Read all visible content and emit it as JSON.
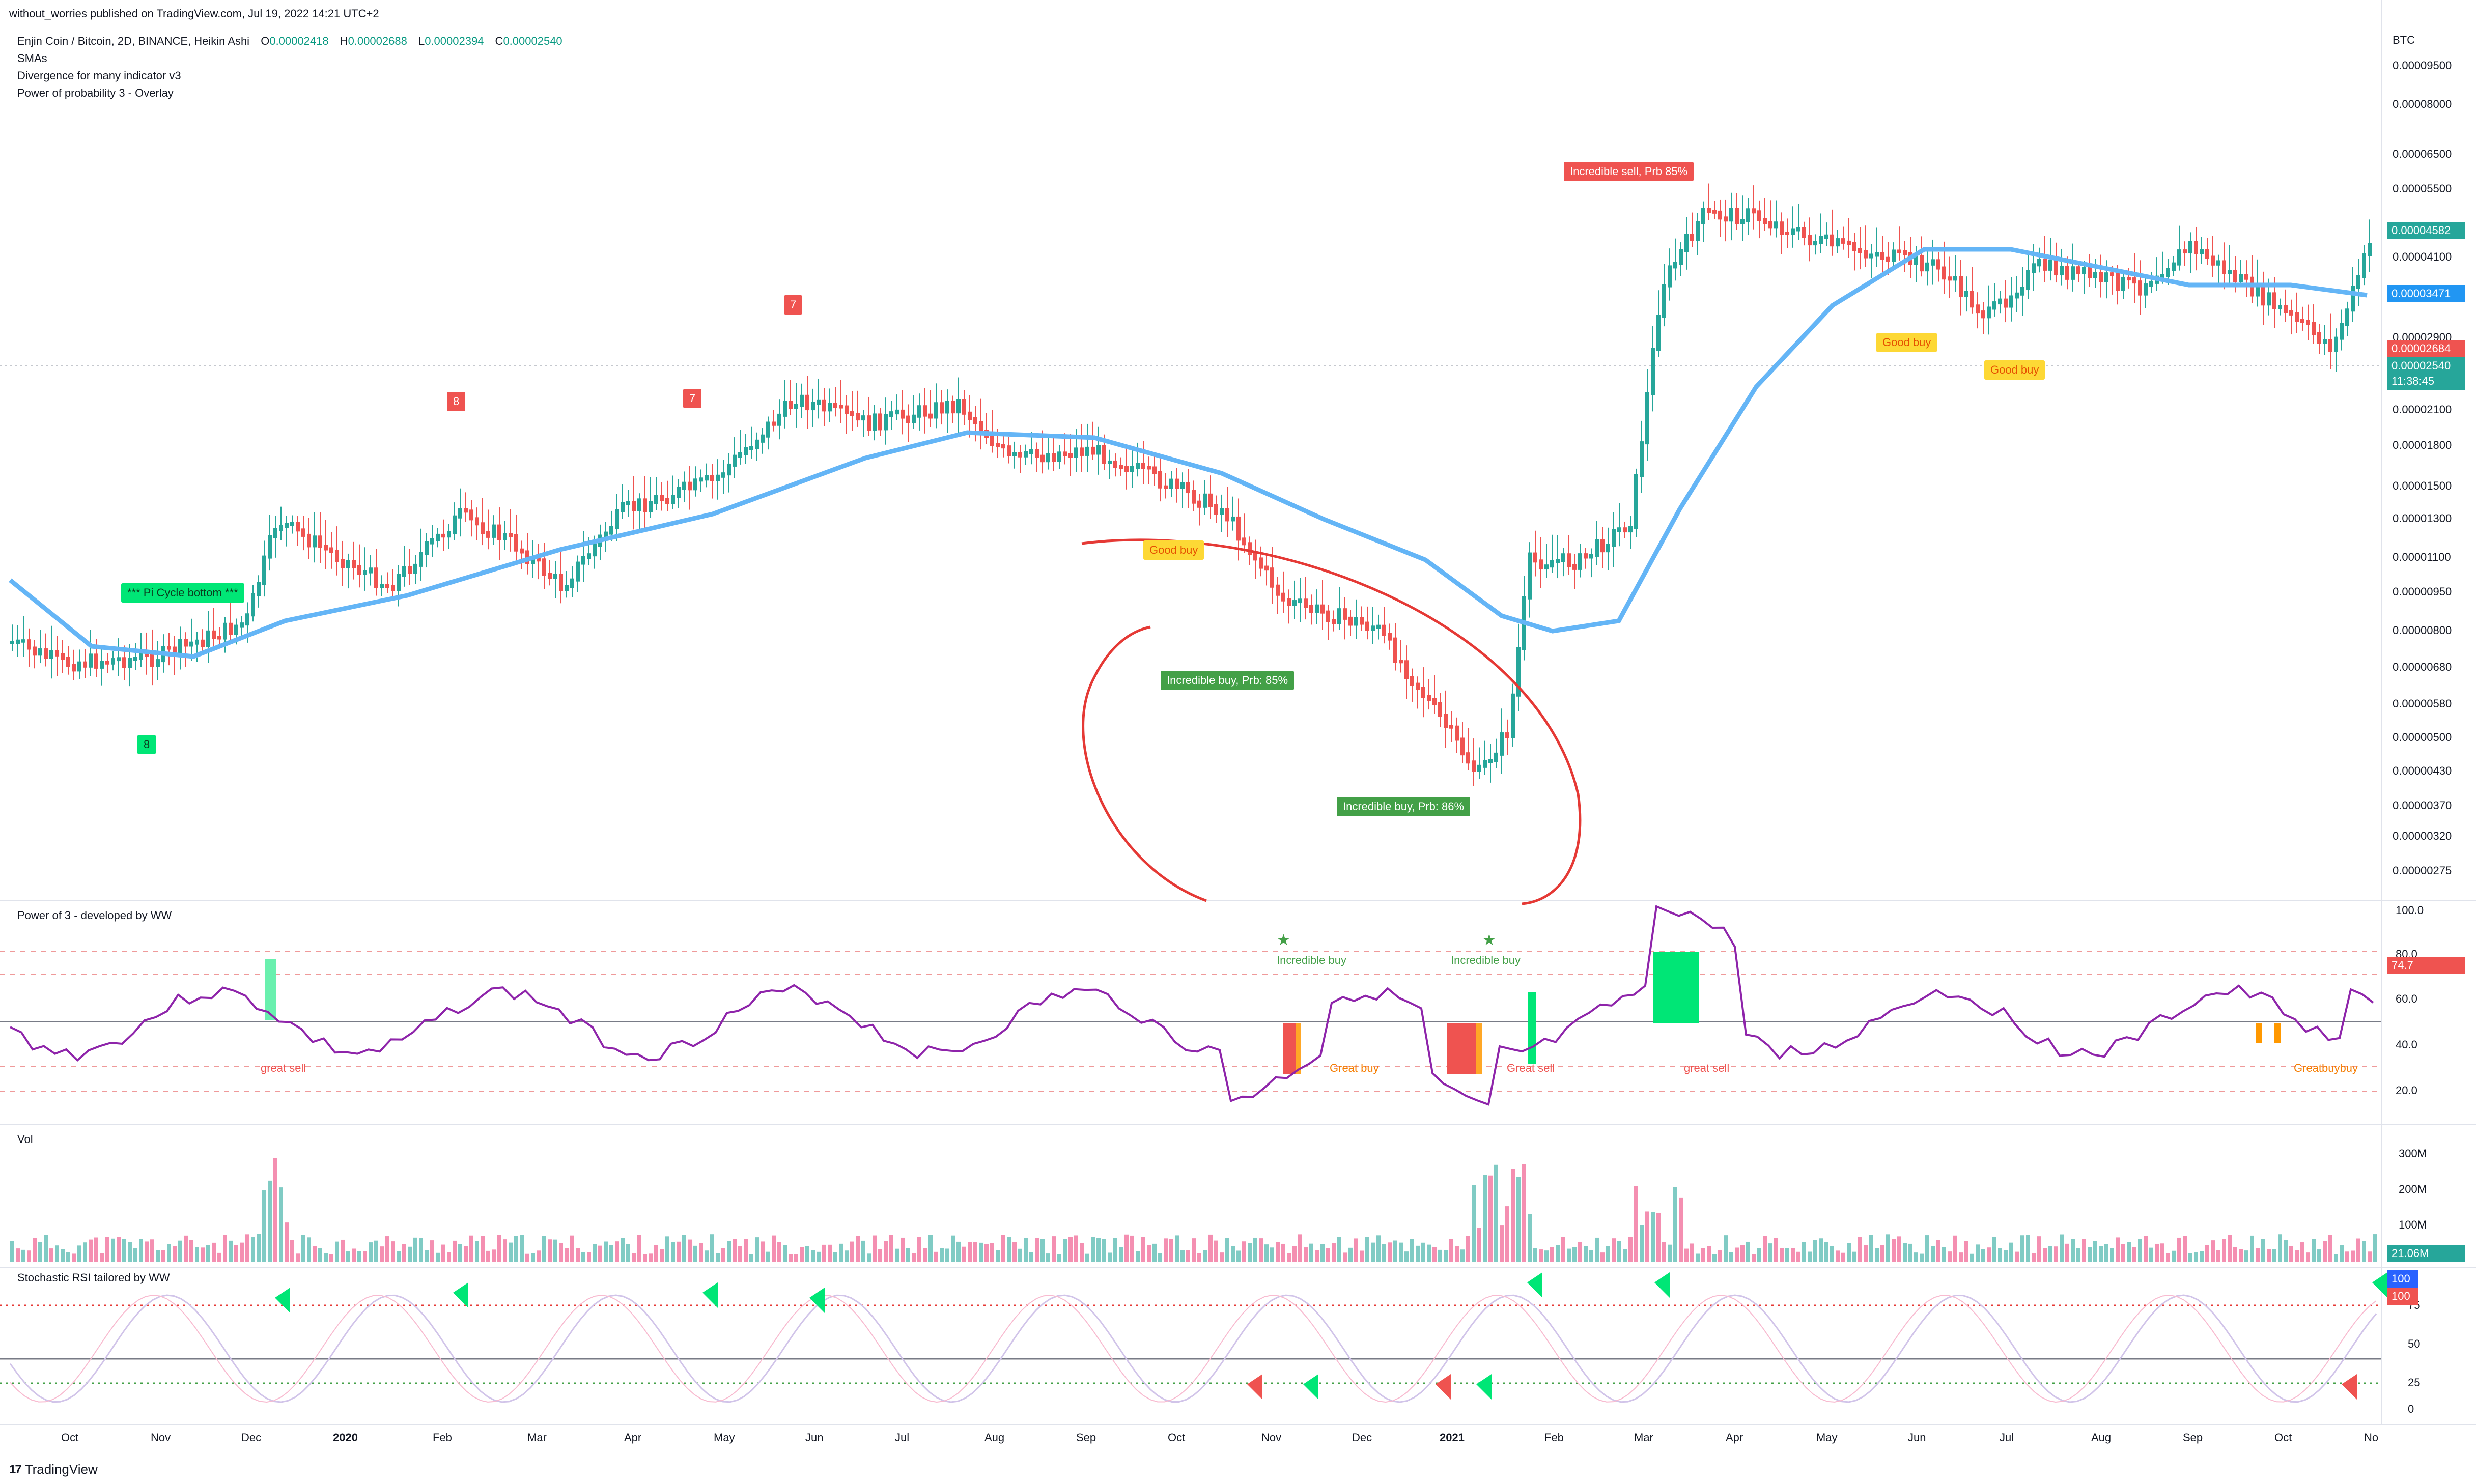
{
  "header": {
    "publish_line": "without_worries published on TradingView.com, Jul 19, 2022 14:21 UTC+2",
    "symbol": "Enjin Coin / Bitcoin, 2D, BINANCE, Heikin Ashi",
    "ohlc": [
      {
        "k": "O",
        "v": "0.00002418"
      },
      {
        "k": "H",
        "v": "0.00002688"
      },
      {
        "k": "L",
        "v": "0.00002394"
      },
      {
        "k": "C",
        "v": "0.00002540"
      }
    ],
    "indicators": [
      "SMAs",
      "Divergence for many indicator v3",
      "Power of probability 3 - Overlay"
    ]
  },
  "price_axis": {
    "currency": "BTC",
    "ticks": [
      "0.00009500",
      "0.00008000",
      "0.00006500",
      "0.00005500",
      "0.00004100",
      "0.00002900",
      "0.00002100",
      "0.00001800",
      "0.00001500",
      "0.00001300",
      "0.00001100",
      "0.00000950",
      "0.00000800",
      "0.00000680",
      "0.00000580",
      "0.00000500",
      "0.00000430",
      "0.00000370",
      "0.00000320",
      "0.00000275"
    ],
    "tags": [
      {
        "label": "0.00004582",
        "color": "#26a69a"
      },
      {
        "label": "0.00003471",
        "color": "#2196f3"
      },
      {
        "label": "0.00002684",
        "color": "#ef5350"
      },
      {
        "label": "0.00002540",
        "color": "#26a69a"
      },
      {
        "label": "11:38:45",
        "color": "#26a69a"
      }
    ]
  },
  "annotations": {
    "pi_cycle": "*** Pi Cycle bottom ***",
    "sell_big": "Incredible sell, Prb 85%",
    "buy_big_1": "Incredible buy, Prb: 85%",
    "buy_big_2": "Incredible buy, Prb: 86%",
    "good_buy": "Good buy",
    "markers": [
      "8",
      "8",
      "7",
      "7"
    ]
  },
  "power_pane": {
    "title": "Power of 3 - developed by WW",
    "ticks": [
      "100.0",
      "80.0",
      "60.0",
      "40.0",
      "20.0"
    ],
    "current": "74.7",
    "incredible_buy": "Incredible buy",
    "great_sell": "great sell",
    "great_buy": "Great buy",
    "great_sell_cap": "Great sell",
    "great_buy_overlap": "Greatbuybuy"
  },
  "volume_pane": {
    "title": "Vol",
    "ticks": [
      "300M",
      "200M",
      "100M"
    ],
    "current": "21.06M"
  },
  "stoch_pane": {
    "title": "Stochastic RSI tailored by WW",
    "ticks": [
      "75",
      "50",
      "25",
      "0"
    ],
    "current_k": "100",
    "current_d": "100"
  },
  "time_axis": [
    "Oct",
    "Nov",
    "Dec",
    "2020",
    "Feb",
    "Mar",
    "Apr",
    "May",
    "Jun",
    "Jul",
    "Aug",
    "Sep",
    "Oct",
    "Nov",
    "Dec",
    "2021",
    "Feb",
    "Mar",
    "Apr",
    "May",
    "Jun",
    "Jul",
    "Aug",
    "Sep",
    "Oct",
    "No"
  ],
  "footer": {
    "logo": "17",
    "brand": "TradingView"
  },
  "colors": {
    "up": "#26a69a",
    "down": "#ef5350",
    "sma": "#64b5f6",
    "buy": "#43a047",
    "sell": "#ef5350",
    "good": "#fdd835"
  }
}
